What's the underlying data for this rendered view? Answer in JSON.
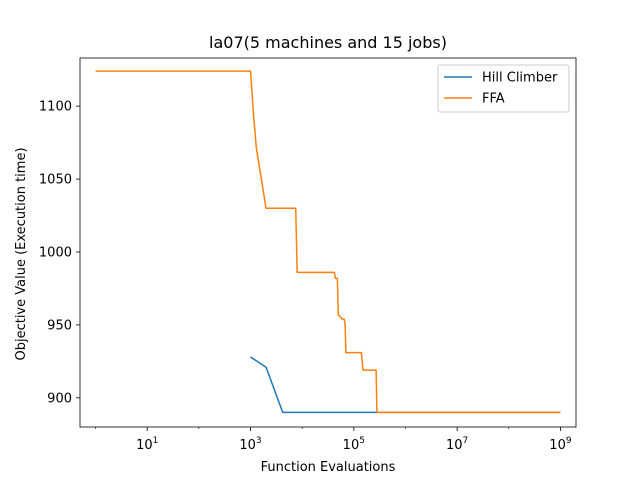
{
  "chart_data": {
    "type": "line",
    "title": "la07(5 machines and 15 jobs)",
    "xlabel": "Function Evaluations",
    "ylabel": "Objective Value (Execution time)",
    "xscale": "log",
    "xlim": [
      0.5,
      2000000000
    ],
    "ylim": [
      880,
      1133
    ],
    "xticks": [
      {
        "value": 10,
        "base": "10",
        "exp": "1"
      },
      {
        "value": 1000,
        "base": "10",
        "exp": "3"
      },
      {
        "value": 100000,
        "base": "10",
        "exp": "5"
      },
      {
        "value": 10000000,
        "base": "10",
        "exp": "7"
      },
      {
        "value": 1000000000,
        "base": "10",
        "exp": "9"
      }
    ],
    "yticks": [
      900,
      950,
      1000,
      1050,
      1100
    ],
    "grid": false,
    "legend_position": "top-right",
    "series": [
      {
        "name": "Hill Climber",
        "color": "#1f77b4",
        "x": [
          1000,
          2000,
          4200,
          1000000000
        ],
        "y": [
          928,
          921,
          890,
          890
        ]
      },
      {
        "name": "FFA",
        "color": "#ff7f0e",
        "x": [
          1,
          1000,
          1150,
          1300,
          2000,
          7500,
          8000,
          42000,
          44000,
          48000,
          50000,
          60000,
          65000,
          68000,
          70000,
          140000,
          150000,
          270000,
          280000,
          1000000000
        ],
        "y": [
          1124,
          1124,
          1093,
          1071,
          1030,
          1030,
          986,
          986,
          982,
          982,
          957,
          954,
          954,
          950,
          931,
          931,
          919,
          919,
          890,
          890
        ]
      }
    ]
  }
}
